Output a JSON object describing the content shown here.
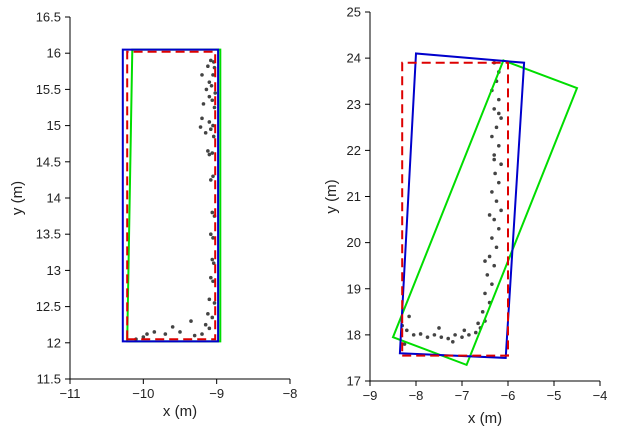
{
  "chart_data": [
    {
      "type": "scatter",
      "title": "",
      "xlabel": "x (m)",
      "ylabel": "y (m)",
      "xlim": [
        -11,
        -8
      ],
      "ylim": [
        11.5,
        16.5
      ],
      "xticks": [
        -11,
        -10,
        -9,
        -8
      ],
      "yticks": [
        11.5,
        12,
        12.5,
        13,
        13.5,
        14,
        14.5,
        15,
        15.5,
        16,
        16.5
      ],
      "grid": false,
      "points": [
        [
          -9.08,
          15.9
        ],
        [
          -9.04,
          15.88
        ],
        [
          -9.12,
          15.82
        ],
        [
          -9.03,
          15.8
        ],
        [
          -9.2,
          15.7
        ],
        [
          -9.05,
          15.7
        ],
        [
          -9.1,
          15.6
        ],
        [
          -9.07,
          15.55
        ],
        [
          -9.14,
          15.5
        ],
        [
          -9.02,
          15.45
        ],
        [
          -9.1,
          15.4
        ],
        [
          -9.06,
          15.35
        ],
        [
          -9.18,
          15.3
        ],
        [
          -9.03,
          15.25
        ],
        [
          -9.2,
          15.1
        ],
        [
          -9.1,
          15.05
        ],
        [
          -9.05,
          15.0
        ],
        [
          -9.22,
          14.98
        ],
        [
          -9.08,
          14.95
        ],
        [
          -9.15,
          14.9
        ],
        [
          -9.04,
          14.85
        ],
        [
          -9.12,
          14.65
        ],
        [
          -9.06,
          14.62
        ],
        [
          -9.1,
          14.6
        ],
        [
          -9.05,
          14.3
        ],
        [
          -9.08,
          14.25
        ],
        [
          -9.06,
          13.8
        ],
        [
          -9.03,
          13.75
        ],
        [
          -9.08,
          13.5
        ],
        [
          -9.05,
          13.45
        ],
        [
          -9.06,
          13.15
        ],
        [
          -9.04,
          13.1
        ],
        [
          -9.08,
          12.9
        ],
        [
          -9.05,
          12.85
        ],
        [
          -9.1,
          12.6
        ],
        [
          -9.03,
          12.55
        ],
        [
          -9.12,
          12.4
        ],
        [
          -9.06,
          12.35
        ],
        [
          -9.15,
          12.25
        ],
        [
          -9.1,
          12.2
        ],
        [
          -9.35,
          12.3
        ],
        [
          -9.5,
          12.15
        ],
        [
          -9.6,
          12.22
        ],
        [
          -9.7,
          12.12
        ],
        [
          -9.85,
          12.15
        ],
        [
          -9.95,
          12.12
        ],
        [
          -10.0,
          12.08
        ],
        [
          -10.1,
          12.05
        ],
        [
          -9.3,
          12.1
        ],
        [
          -9.2,
          12.12
        ]
      ],
      "boxes": [
        {
          "color": "#00dd00",
          "dash": false,
          "corners": [
            [
              -10.22,
              12.02
            ],
            [
              -8.95,
              12.02
            ],
            [
              -8.95,
              16.05
            ],
            [
              -10.15,
              16.05
            ]
          ]
        },
        {
          "color": "#0000cc",
          "dash": false,
          "corners": [
            [
              -10.28,
              12.02
            ],
            [
              -8.98,
              12.02
            ],
            [
              -8.98,
              16.05
            ],
            [
              -10.28,
              16.05
            ]
          ]
        },
        {
          "color": "#dd0000",
          "dash": true,
          "corners": [
            [
              -10.22,
              12.05
            ],
            [
              -9.02,
              12.05
            ],
            [
              -9.02,
              16.02
            ],
            [
              -10.22,
              16.02
            ]
          ]
        }
      ]
    },
    {
      "type": "scatter",
      "title": "",
      "xlabel": "x (m)",
      "ylabel": "y (m)",
      "xlim": [
        -9,
        -4
      ],
      "ylim": [
        17,
        25
      ],
      "xticks": [
        -9,
        -8,
        -7,
        -6,
        -5,
        -4
      ],
      "yticks": [
        17,
        18,
        19,
        20,
        21,
        22,
        23,
        24,
        25
      ],
      "grid": false,
      "points": [
        [
          -6.3,
          23.9
        ],
        [
          -6.2,
          23.7
        ],
        [
          -6.25,
          23.5
        ],
        [
          -6.35,
          23.3
        ],
        [
          -6.2,
          23.1
        ],
        [
          -6.3,
          22.9
        ],
        [
          -6.15,
          22.7
        ],
        [
          -6.25,
          22.5
        ],
        [
          -6.35,
          22.3
        ],
        [
          -6.2,
          22.1
        ],
        [
          -6.3,
          21.9
        ],
        [
          -6.15,
          21.7
        ],
        [
          -6.28,
          21.5
        ],
        [
          -6.2,
          21.3
        ],
        [
          -6.35,
          21.1
        ],
        [
          -6.25,
          20.9
        ],
        [
          -6.15,
          20.7
        ],
        [
          -6.3,
          20.5
        ],
        [
          -6.2,
          20.3
        ],
        [
          -6.35,
          20.1
        ],
        [
          -6.25,
          19.9
        ],
        [
          -6.4,
          19.7
        ],
        [
          -6.3,
          19.5
        ],
        [
          -6.45,
          19.3
        ],
        [
          -6.35,
          19.1
        ],
        [
          -6.5,
          18.9
        ],
        [
          -6.4,
          18.7
        ],
        [
          -6.55,
          18.5
        ],
        [
          -6.5,
          18.3
        ],
        [
          -6.6,
          18.15
        ],
        [
          -6.7,
          18.05
        ],
        [
          -6.85,
          18.0
        ],
        [
          -7.0,
          17.95
        ],
        [
          -7.15,
          18.0
        ],
        [
          -7.3,
          17.92
        ],
        [
          -7.45,
          17.95
        ],
        [
          -7.6,
          18.0
        ],
        [
          -7.75,
          17.95
        ],
        [
          -7.9,
          18.02
        ],
        [
          -8.05,
          18.0
        ],
        [
          -8.2,
          18.1
        ],
        [
          -8.3,
          18.2
        ],
        [
          -8.15,
          18.4
        ],
        [
          -8.25,
          17.8
        ],
        [
          -7.5,
          18.15
        ],
        [
          -7.2,
          17.85
        ],
        [
          -6.95,
          18.1
        ],
        [
          -6.65,
          18.25
        ],
        [
          -6.2,
          22.8
        ],
        [
          -6.3,
          21.8
        ],
        [
          -6.4,
          20.6
        ],
        [
          -6.5,
          19.6
        ]
      ],
      "boxes": [
        {
          "color": "#00dd00",
          "dash": false,
          "corners": [
            [
              -8.5,
              17.95
            ],
            [
              -6.9,
              17.35
            ],
            [
              -4.5,
              23.35
            ],
            [
              -6.1,
              23.95
            ]
          ]
        },
        {
          "color": "#0000cc",
          "dash": false,
          "corners": [
            [
              -8.35,
              17.6
            ],
            [
              -6.05,
              17.5
            ],
            [
              -5.65,
              23.9
            ],
            [
              -8.0,
              24.1
            ]
          ]
        },
        {
          "color": "#dd0000",
          "dash": true,
          "corners": [
            [
              -8.3,
              17.55
            ],
            [
              -6.0,
              17.55
            ],
            [
              -6.0,
              23.9
            ],
            [
              -8.3,
              23.9
            ]
          ]
        }
      ]
    }
  ]
}
